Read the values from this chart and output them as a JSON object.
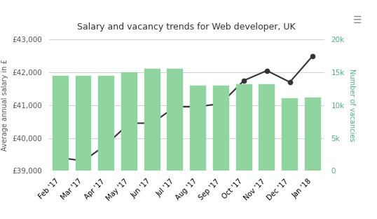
{
  "title": "Salary and vacancy trends for Web developer, UK",
  "categories": [
    "Feb '17",
    "Mar '17",
    "Apr '17",
    "May '17",
    "Jun '17",
    "Jul '17",
    "Aug '17",
    "Sep '17",
    "Oct '17",
    "Nov '17",
    "Dec '17",
    "Jan '18"
  ],
  "salary": [
    39400,
    39300,
    39800,
    40450,
    40450,
    40950,
    40950,
    41050,
    41750,
    42050,
    41700,
    42500
  ],
  "vacancies": [
    14500,
    14500,
    14500,
    15000,
    15500,
    15500,
    13000,
    13000,
    13200,
    13200,
    11000,
    11200
  ],
  "ylabel_left": "Average annual salary in £",
  "ylabel_right": "Number of vacancies",
  "ylim_left": [
    39000,
    43000
  ],
  "ylim_right": [
    0,
    20000
  ],
  "yticks_left": [
    39000,
    40000,
    41000,
    42000,
    43000
  ],
  "yticks_right": [
    0,
    5000,
    10000,
    15000,
    20000
  ],
  "bar_color": "#90d4a0",
  "bar_edge_color": "#90d4a0",
  "line_color": "#333333",
  "marker_color": "#333333",
  "left_tick_color": "#555555",
  "right_tick_color": "#4caf7d",
  "title_color": "#333333",
  "bg_color": "#ffffff",
  "grid_color": "#d0d0d0",
  "legend_salary_label": "Average annual salary in £",
  "legend_vacancy_label": "Number of vacancies",
  "left_label_color": "#555555",
  "right_label_color": "#4caf7d"
}
